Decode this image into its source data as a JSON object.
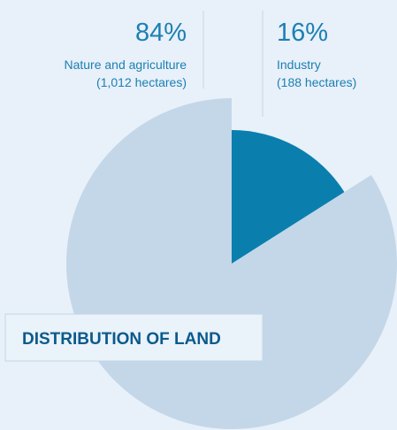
{
  "chart_data": {
    "type": "pie",
    "title": "DISTRIBUTION OF LAND",
    "categories": [
      "Nature and agriculture",
      "Industry"
    ],
    "values": [
      84,
      16
    ],
    "value_labels": [
      "84%",
      "16%"
    ],
    "annotations": [
      "(1,012 hectares)",
      "(188  hectares)"
    ],
    "colors": [
      "#c3d7e8",
      "#0a7fae"
    ]
  }
}
